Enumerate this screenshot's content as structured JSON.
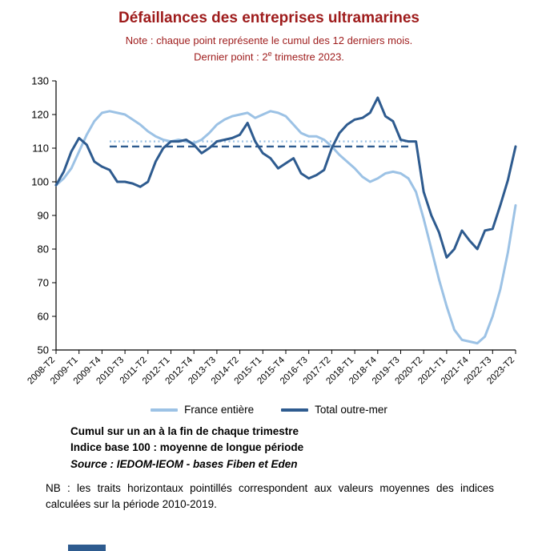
{
  "page": {
    "title": "Défaillances des entreprises ultramarines",
    "note_line1": "Note : chaque point représente le cumul des 12 derniers mois.",
    "note_line2_prefix": "Dernier point : 2",
    "note_line2_sup": "e",
    "note_line2_suffix": " trimestre 2023."
  },
  "colors": {
    "title_red": "#9E1B1B",
    "light_blue": "#9CC2E5",
    "dark_blue": "#2E5B8F",
    "axis": "#000000"
  },
  "chart_data": {
    "type": "line",
    "title": "Défaillances des entreprises ultramarines",
    "xlabel": "",
    "ylabel": "",
    "ylim": [
      50,
      130
    ],
    "y_tick_step": 10,
    "grid": false,
    "legend_position": "bottom",
    "x_tick_every": 3,
    "categories": [
      "2008-T2",
      "2008-T3",
      "2008-T4",
      "2009-T1",
      "2009-T2",
      "2009-T3",
      "2009-T4",
      "2010-T1",
      "2010-T2",
      "2010-T3",
      "2010-T4",
      "2011-T1",
      "2011-T2",
      "2011-T3",
      "2011-T4",
      "2012-T1",
      "2012-T2",
      "2012-T3",
      "2012-T4",
      "2013-T1",
      "2013-T2",
      "2013-T3",
      "2013-T4",
      "2014-T1",
      "2014-T2",
      "2014-T3",
      "2014-T4",
      "2015-T1",
      "2015-T2",
      "2015-T3",
      "2015-T4",
      "2016-T1",
      "2016-T2",
      "2016-T3",
      "2016-T4",
      "2017-T1",
      "2017-T2",
      "2017-T3",
      "2017-T4",
      "2018-T1",
      "2018-T2",
      "2018-T3",
      "2018-T4",
      "2019-T1",
      "2019-T2",
      "2019-T3",
      "2019-T4",
      "2020-T1",
      "2020-T2",
      "2020-T3",
      "2020-T4",
      "2021-T1",
      "2021-T2",
      "2021-T3",
      "2021-T4",
      "2022-T1",
      "2022-T2",
      "2022-T3",
      "2022-T4",
      "2023-T1",
      "2023-T2"
    ],
    "series": [
      {
        "name": "France entière",
        "color": "#9CC2E5",
        "values": [
          99,
          101,
          104,
          109,
          114,
          118,
          120.5,
          121,
          120.5,
          120,
          118.5,
          117,
          115,
          113.5,
          112.5,
          112,
          112.5,
          112,
          111.5,
          112.5,
          114.5,
          117,
          118.5,
          119.5,
          120,
          120.5,
          119,
          120,
          121,
          120.5,
          119.5,
          117,
          114.5,
          113.5,
          113.5,
          112.5,
          110.5,
          108,
          106,
          104,
          101.5,
          100,
          101,
          102.5,
          103,
          102.5,
          101,
          97,
          89,
          80,
          71,
          63,
          56,
          53,
          52.5,
          52,
          54,
          60,
          68,
          79,
          93
        ]
      },
      {
        "name": "Total outre-mer",
        "color": "#2E5B8F",
        "values": [
          99,
          103,
          109,
          113,
          111,
          106,
          104.5,
          103.5,
          100,
          100,
          99.5,
          98.5,
          100,
          106,
          110,
          112,
          112,
          112.5,
          111,
          108.5,
          110,
          112,
          112.5,
          113,
          114,
          117.5,
          112,
          108.5,
          107,
          104,
          105.5,
          107,
          102.5,
          101,
          102,
          103.5,
          110,
          114.5,
          117,
          118.5,
          119,
          120.5,
          125,
          119.5,
          118,
          112.5,
          112,
          112,
          97,
          90,
          85,
          77.5,
          80,
          85.5,
          82.5,
          80,
          85.5,
          86,
          93,
          100.5,
          110.5
        ]
      }
    ],
    "reference_lines": [
      {
        "name": "moyenne 2010-2019 France entière",
        "value": 112,
        "style": "dotted",
        "color": "#9CC2E5",
        "from_index": 7,
        "to_index": 46
      },
      {
        "name": "moyenne 2010-2019 Total outre-mer",
        "value": 110.5,
        "style": "dashed",
        "color": "#2E5B8F",
        "from_index": 7,
        "to_index": 46
      }
    ]
  },
  "footer": {
    "line1": "Cumul sur un an à la fin de chaque trimestre",
    "line2": "Indice base 100 : moyenne de longue période",
    "source": "Source : IEDOM-IEOM - bases Fiben et Eden",
    "nb": "NB : les traits horizontaux pointillés correspondent aux valeurs moyennes des indices calculées sur la période 2010-2019."
  }
}
